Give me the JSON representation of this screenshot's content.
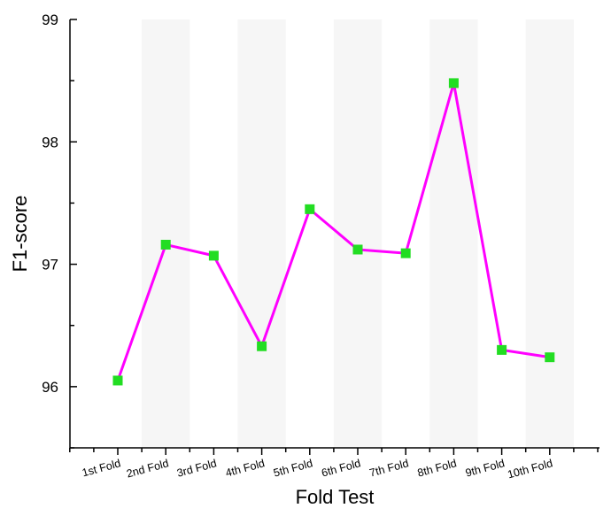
{
  "chart_data": {
    "type": "line",
    "categories": [
      "1st Fold",
      "2nd Fold",
      "3rd Fold",
      "4th Fold",
      "5th Fold",
      "6th Fold",
      "7th Fold",
      "8th Fold",
      "9th Fold",
      "10th Fold"
    ],
    "series": [
      {
        "values": [
          96.05,
          97.16,
          97.07,
          96.33,
          97.45,
          97.12,
          97.09,
          98.48,
          96.3,
          96.24
        ],
        "line_color": "#ff00ff",
        "marker_color": "#22dd22",
        "marker": "square"
      }
    ],
    "title": "",
    "xlabel": "Fold Test",
    "ylabel": "F1-score",
    "ylim": [
      95.5,
      99
    ],
    "yticks": [
      "96",
      "97",
      "98",
      "99"
    ],
    "grid": false,
    "legend": "none"
  }
}
